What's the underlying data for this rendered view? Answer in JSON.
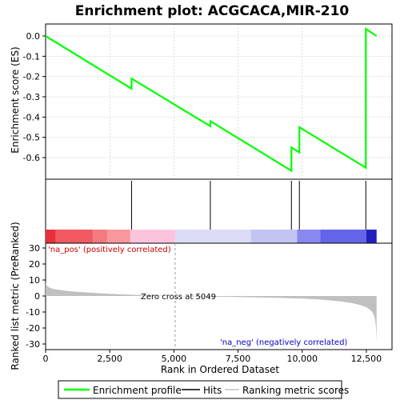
{
  "chart_data": {
    "type": "line",
    "title": "Enrichment plot: ACGCACA,MIR-210",
    "es_panel": {
      "ylabel": "Enrichment score (ES)",
      "ylim": [
        -0.7,
        0.05
      ],
      "yticks": [
        "0.0",
        "-0.1",
        "-0.2",
        "-0.3",
        "-0.4",
        "-0.5",
        "-0.6"
      ],
      "grid": true,
      "series": [
        {
          "name": "Enrichment profile",
          "color": "#00ff00",
          "x": [
            0,
            3350,
            3351,
            6420,
            6421,
            9580,
            9581,
            9890,
            9891,
            12480,
            12481,
            12900
          ],
          "y": [
            0.0,
            -0.26,
            -0.21,
            -0.445,
            -0.42,
            -0.665,
            -0.55,
            -0.575,
            -0.45,
            -0.65,
            0.035,
            0.0
          ]
        }
      ]
    },
    "hits_panel": {
      "hit_positions": [
        3350,
        6420,
        9580,
        9890,
        12480
      ],
      "color_bar": [
        {
          "from": 0,
          "to": 400,
          "color": "#e8303c"
        },
        {
          "from": 400,
          "to": 1850,
          "color": "#f05a60"
        },
        {
          "from": 1850,
          "to": 2400,
          "color": "#f47a80"
        },
        {
          "from": 2400,
          "to": 3300,
          "color": "#f8989c"
        },
        {
          "from": 3300,
          "to": 5049,
          "color": "#fcc4dc"
        },
        {
          "from": 5049,
          "to": 8000,
          "color": "#dcdcf8"
        },
        {
          "from": 8000,
          "to": 9800,
          "color": "#c4c4f4"
        },
        {
          "from": 9800,
          "to": 10700,
          "color": "#8888f0"
        },
        {
          "from": 10700,
          "to": 12500,
          "color": "#6464e8"
        },
        {
          "from": 12500,
          "to": 12900,
          "color": "#2020c0"
        }
      ]
    },
    "metric_panel": {
      "ylabel": "Ranked list metric (PreRanked)",
      "xlabel": "Rank in Ordered Dataset",
      "ylim": [
        -32,
        32
      ],
      "yticks": [
        "30",
        "20",
        "10",
        "0",
        "-10",
        "-20",
        "-30"
      ],
      "xlim": [
        0,
        13500
      ],
      "xticks": [
        "0",
        "2,500",
        "5,000",
        "7,500",
        "10,000",
        "12,500"
      ],
      "zero_cross_label": "Zero cross at 5049",
      "zero_cross": 5049,
      "pos_label": "'na_pos' (positively correlated)",
      "neg_label": "'na_neg' (negatively correlated)",
      "fill_color": "#c0c0c0",
      "curve_x": [
        0,
        50,
        150,
        300,
        600,
        1000,
        1500,
        2000,
        2500,
        3000,
        3500,
        4000,
        4500,
        5049,
        6000,
        7000,
        8000,
        9000,
        10000,
        10500,
        11000,
        11500,
        12000,
        12300,
        12500,
        12650,
        12750,
        12820,
        12870,
        12900
      ],
      "curve_y": [
        8.5,
        6.5,
        5.2,
        4.4,
        3.6,
        2.9,
        2.3,
        1.8,
        1.4,
        1.0,
        0.7,
        0.45,
        0.2,
        0.0,
        -0.3,
        -0.5,
        -0.8,
        -1.1,
        -1.6,
        -2.0,
        -2.6,
        -3.4,
        -4.6,
        -5.8,
        -7.0,
        -8.6,
        -10.5,
        -13.0,
        -18.0,
        -29.0
      ]
    },
    "legend": {
      "items": [
        {
          "label": "Enrichment profile",
          "color": "#00ff00"
        },
        {
          "label": "Hits",
          "color": "#000000"
        },
        {
          "label": "Ranking metric scores",
          "color": "#c0c0c0"
        }
      ]
    }
  }
}
